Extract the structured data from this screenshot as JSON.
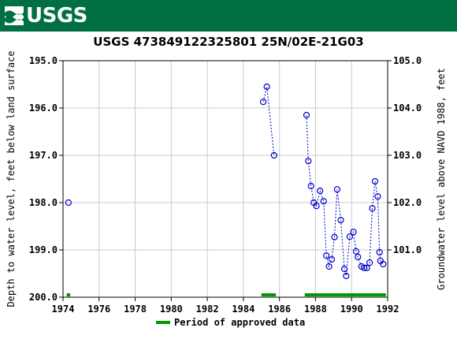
{
  "header": {
    "logo_text": "USGS",
    "color": "#006f41"
  },
  "chart_data": {
    "type": "scatter",
    "title": "USGS 473849122325801 25N/02E-21G03",
    "ylabel_left": "Depth to water level, feet below land surface",
    "ylabel_right": "Groundwater level above NAVD 1988, feet",
    "xlim": [
      1974,
      1992
    ],
    "ylim_left": [
      195.0,
      200.0
    ],
    "ylim_right": [
      105.0,
      100.0
    ],
    "x_ticks": [
      "1974",
      "1976",
      "1978",
      "1980",
      "1982",
      "1984",
      "1986",
      "1988",
      "1990",
      "1992"
    ],
    "y_ticks_left": [
      "195.0",
      "196.0",
      "197.0",
      "198.0",
      "199.0",
      "200.0"
    ],
    "y_ticks_right": [
      "105.0",
      "104.0",
      "103.0",
      "102.0",
      "101.0"
    ],
    "grid": true,
    "series": [
      {
        "color": "#0000cc",
        "points": [
          {
            "x": 1974.3,
            "y": 198.0,
            "segment": 0
          },
          {
            "x": 1985.1,
            "y": 195.87,
            "segment": 1
          },
          {
            "x": 1985.3,
            "y": 195.55,
            "segment": 1
          },
          {
            "x": 1985.7,
            "y": 197.0,
            "segment": 1
          },
          {
            "x": 1987.5,
            "y": 196.15,
            "segment": 2
          },
          {
            "x": 1987.6,
            "y": 197.12,
            "segment": 2
          },
          {
            "x": 1987.75,
            "y": 197.65,
            "segment": 2
          },
          {
            "x": 1987.9,
            "y": 198.0,
            "segment": 2
          },
          {
            "x": 1988.05,
            "y": 198.07,
            "segment": 2
          },
          {
            "x": 1988.25,
            "y": 197.75,
            "segment": 2
          },
          {
            "x": 1988.45,
            "y": 197.97,
            "segment": 2
          },
          {
            "x": 1988.6,
            "y": 199.12,
            "segment": 2
          },
          {
            "x": 1988.75,
            "y": 199.35,
            "segment": 2
          },
          {
            "x": 1988.9,
            "y": 199.2,
            "segment": 2
          },
          {
            "x": 1989.05,
            "y": 198.73,
            "segment": 2
          },
          {
            "x": 1989.2,
            "y": 197.72,
            "segment": 2
          },
          {
            "x": 1989.4,
            "y": 198.37,
            "segment": 2
          },
          {
            "x": 1989.6,
            "y": 199.4,
            "segment": 2
          },
          {
            "x": 1989.7,
            "y": 199.55,
            "segment": 2
          },
          {
            "x": 1989.9,
            "y": 198.72,
            "segment": 2
          },
          {
            "x": 1990.1,
            "y": 198.62,
            "segment": 2
          },
          {
            "x": 1990.25,
            "y": 199.03,
            "segment": 2
          },
          {
            "x": 1990.35,
            "y": 199.15,
            "segment": 2
          },
          {
            "x": 1990.55,
            "y": 199.35,
            "segment": 2
          },
          {
            "x": 1990.7,
            "y": 199.38,
            "segment": 2
          },
          {
            "x": 1990.85,
            "y": 199.38,
            "segment": 2
          },
          {
            "x": 1991.0,
            "y": 199.27,
            "segment": 2
          },
          {
            "x": 1991.15,
            "y": 198.12,
            "segment": 2
          },
          {
            "x": 1991.3,
            "y": 197.55,
            "segment": 2
          },
          {
            "x": 1991.45,
            "y": 197.87,
            "segment": 2
          },
          {
            "x": 1991.55,
            "y": 199.05,
            "segment": 2
          },
          {
            "x": 1991.6,
            "y": 199.23,
            "segment": 2
          },
          {
            "x": 1991.75,
            "y": 199.3,
            "segment": 2
          }
        ]
      }
    ],
    "approved_periods": [
      {
        "start": 1974.2,
        "end": 1974.4
      },
      {
        "start": 1985.0,
        "end": 1985.8
      },
      {
        "start": 1987.4,
        "end": 1991.9
      }
    ],
    "approved_color": "#009900",
    "legend": {
      "label": "Period of approved data",
      "position": "bottom"
    }
  }
}
